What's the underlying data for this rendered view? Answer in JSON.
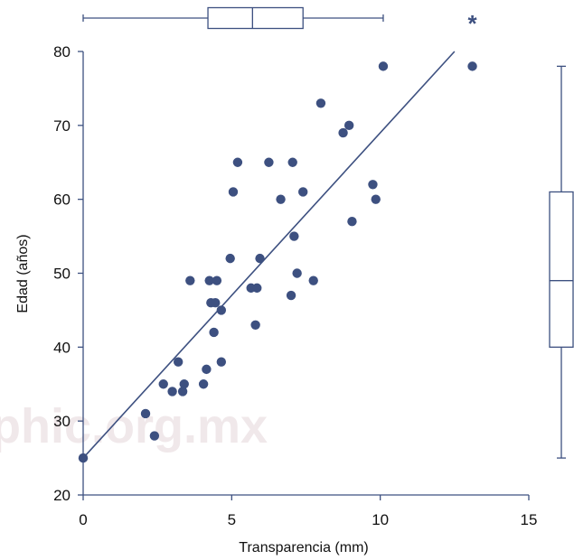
{
  "watermark": "phic.org.mx",
  "chart_data": {
    "type": "scatter",
    "title": "",
    "xlabel": "Transparencia (mm)",
    "ylabel": "Edad (años)",
    "xlim": [
      0,
      15
    ],
    "ylim": [
      20,
      80
    ],
    "x_ticks": [
      "0",
      "5",
      "10",
      "15"
    ],
    "y_ticks": [
      "20",
      "30",
      "40",
      "50",
      "60",
      "70",
      "80"
    ],
    "grid": false,
    "legend": "none",
    "color": "#3d5080",
    "points": [
      {
        "x": 0.0,
        "y": 25
      },
      {
        "x": 2.1,
        "y": 31
      },
      {
        "x": 2.4,
        "y": 28
      },
      {
        "x": 2.7,
        "y": 35
      },
      {
        "x": 3.0,
        "y": 34
      },
      {
        "x": 3.2,
        "y": 38
      },
      {
        "x": 3.35,
        "y": 34
      },
      {
        "x": 3.4,
        "y": 35
      },
      {
        "x": 3.6,
        "y": 49
      },
      {
        "x": 4.05,
        "y": 35
      },
      {
        "x": 4.15,
        "y": 37
      },
      {
        "x": 4.25,
        "y": 49
      },
      {
        "x": 4.3,
        "y": 46
      },
      {
        "x": 4.4,
        "y": 42
      },
      {
        "x": 4.45,
        "y": 46
      },
      {
        "x": 4.5,
        "y": 49
      },
      {
        "x": 4.65,
        "y": 45
      },
      {
        "x": 4.65,
        "y": 38
      },
      {
        "x": 4.95,
        "y": 52
      },
      {
        "x": 5.05,
        "y": 61
      },
      {
        "x": 5.2,
        "y": 65
      },
      {
        "x": 5.65,
        "y": 48
      },
      {
        "x": 5.8,
        "y": 43
      },
      {
        "x": 5.85,
        "y": 48
      },
      {
        "x": 5.95,
        "y": 52
      },
      {
        "x": 6.25,
        "y": 65
      },
      {
        "x": 6.65,
        "y": 60
      },
      {
        "x": 7.0,
        "y": 47
      },
      {
        "x": 7.05,
        "y": 65
      },
      {
        "x": 7.1,
        "y": 55
      },
      {
        "x": 7.2,
        "y": 50
      },
      {
        "x": 7.4,
        "y": 61
      },
      {
        "x": 7.75,
        "y": 49
      },
      {
        "x": 8.0,
        "y": 73
      },
      {
        "x": 8.75,
        "y": 69
      },
      {
        "x": 8.95,
        "y": 70
      },
      {
        "x": 9.05,
        "y": 57
      },
      {
        "x": 9.75,
        "y": 62
      },
      {
        "x": 9.85,
        "y": 60
      },
      {
        "x": 10.1,
        "y": 78
      },
      {
        "x": 13.1,
        "y": 78
      }
    ],
    "regression_line": {
      "x0": 0,
      "y0": 25,
      "x1": 12.5,
      "y1": 80
    },
    "x_boxplot": {
      "whisker_low": 0,
      "q1": 4.2,
      "median": 5.7,
      "q3": 7.4,
      "whisker_high": 10.1,
      "outliers": [
        13.1
      ],
      "outlier_symbol": "*"
    },
    "y_boxplot": {
      "whisker_low": 25,
      "q1": 40,
      "median": 49,
      "q3": 61,
      "whisker_high": 78
    }
  }
}
